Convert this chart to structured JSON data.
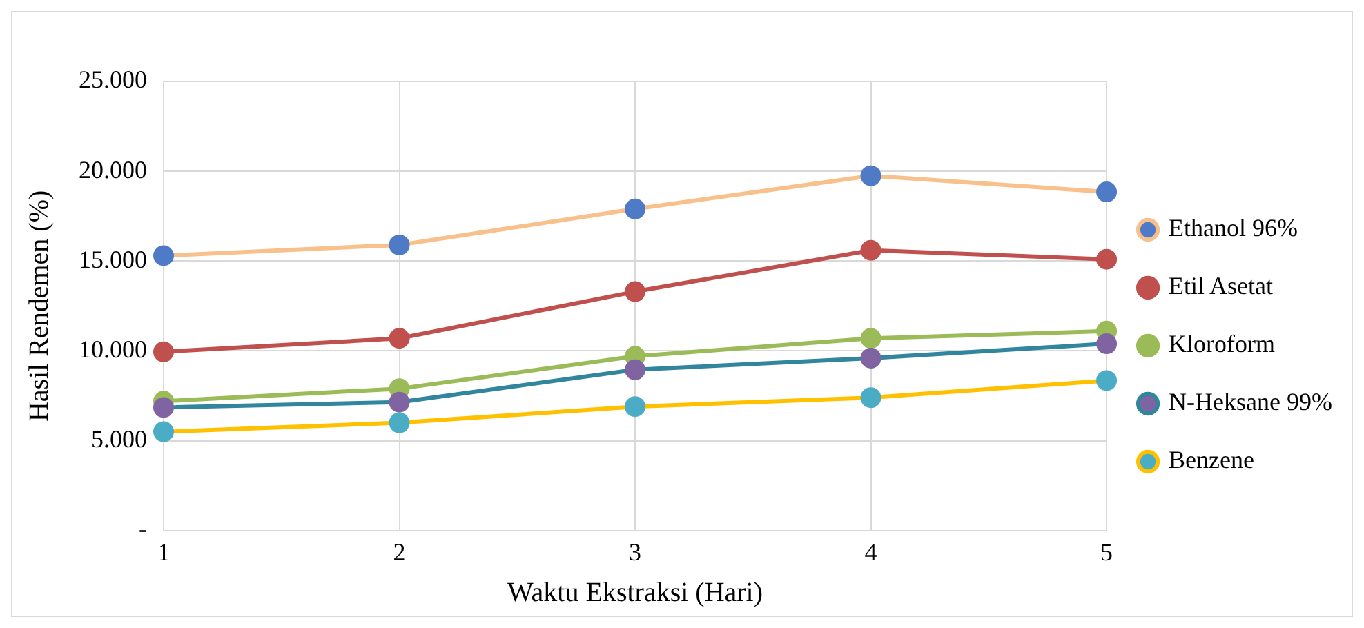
{
  "chart_data": {
    "type": "line",
    "xlabel": "Waktu Ekstraksi (Hari)",
    "ylabel": "Hasil Rendemen (%)",
    "categories": [
      "1",
      "2",
      "3",
      "4",
      "5"
    ],
    "series": [
      {
        "name": "Ethanol 96%",
        "color": "#f8c08a",
        "colors": [
          "#4f7bc6",
          "#4f7bc6",
          "#4f7bc6",
          "#4f7bc6",
          "#4f7bc6"
        ],
        "values": [
          15.3,
          15.9,
          17.9,
          19.75,
          18.85
        ]
      },
      {
        "name": "Etil Asetat",
        "color": "#c0504d",
        "colors": [
          "#c0504d",
          "#c0504d",
          "#c0504d",
          "#c0504d",
          "#c0504d"
        ],
        "values": [
          9.95,
          10.7,
          13.3,
          15.6,
          15.1
        ]
      },
      {
        "name": "Kloroform",
        "color": "#9bbb59",
        "colors": [
          "#9bbb59",
          "#9bbb59",
          "#9bbb59",
          "#9bbb59",
          "#9bbb59"
        ],
        "values": [
          7.2,
          7.9,
          9.7,
          10.7,
          11.1
        ]
      },
      {
        "name": "N-Heksane 99%",
        "color": "#31859c",
        "colors": [
          "#8064a2",
          "#8064a2",
          "#8064a2",
          "#8064a2",
          "#8064a2"
        ],
        "values": [
          6.85,
          7.15,
          8.95,
          9.6,
          10.4
        ]
      },
      {
        "name": "Benzene",
        "color": "#ffc000",
        "colors": [
          "#4bacc6",
          "#4bacc6",
          "#4bacc6",
          "#4bacc6",
          "#4bacc6"
        ],
        "values": [
          5.5,
          6.0,
          6.9,
          7.4,
          8.35
        ]
      }
    ],
    "ylim": [
      0,
      25
    ],
    "yticks": [
      {
        "value": 0,
        "label": "-"
      },
      {
        "value": 5,
        "label": "5.000"
      },
      {
        "value": 10,
        "label": "10.000"
      },
      {
        "value": 15,
        "label": "15.000"
      },
      {
        "value": 20,
        "label": "20.000"
      },
      {
        "value": 25,
        "label": "25.000"
      }
    ],
    "grid": true,
    "legend": "right",
    "marker": "circle",
    "line_style": "solid"
  }
}
